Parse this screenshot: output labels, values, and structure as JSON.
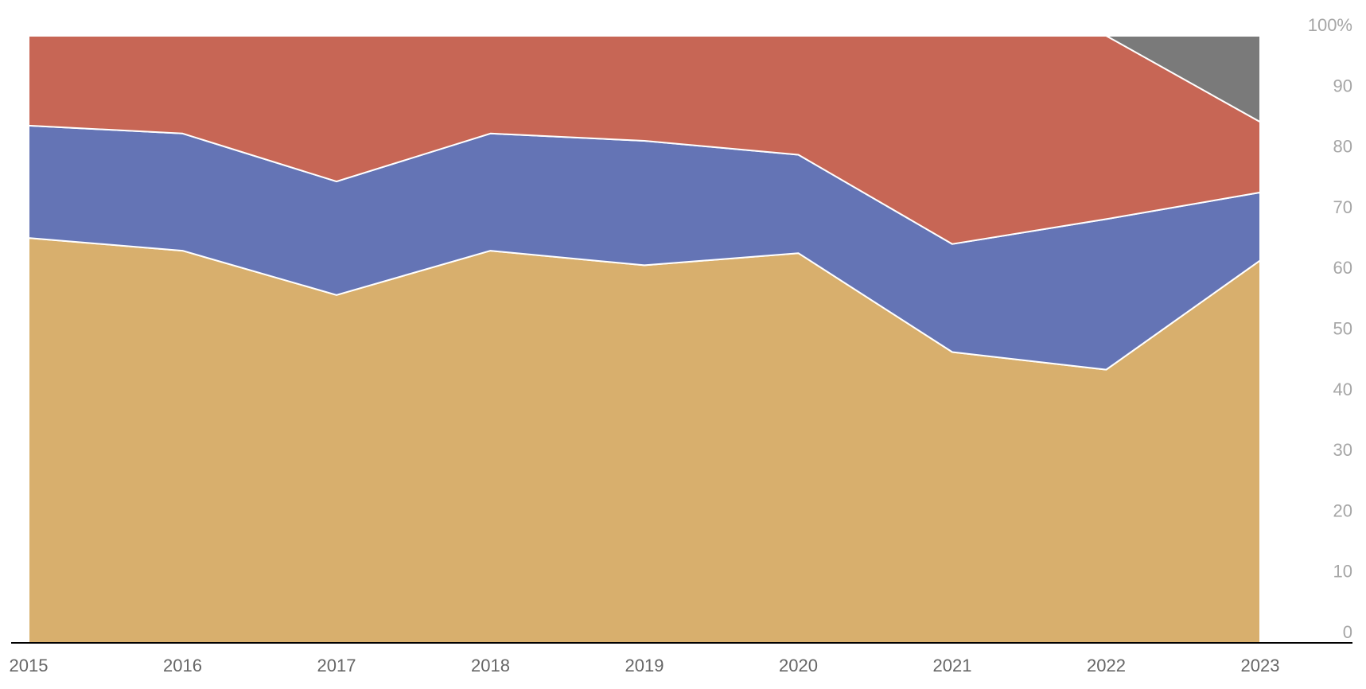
{
  "chart_data": {
    "type": "area",
    "stacked": true,
    "normalized_percent": true,
    "x": [
      "2015",
      "2016",
      "2017",
      "2018",
      "2019",
      "2020",
      "2021",
      "2022",
      "2023"
    ],
    "series": [
      {
        "color": "#d8af6d",
        "values": [
          66.7,
          64.6,
          57.3,
          64.6,
          62.2,
          64.2,
          47.9,
          45.0,
          63.0
        ]
      },
      {
        "color": "#6474b5",
        "values": [
          18.5,
          19.3,
          18.7,
          19.3,
          20.5,
          16.2,
          17.8,
          24.8,
          11.2
        ]
      },
      {
        "color": "#c76655",
        "values": [
          14.8,
          16.1,
          24.0,
          16.1,
          17.3,
          19.6,
          34.3,
          30.2,
          11.6
        ]
      },
      {
        "color": "#7a7a7a",
        "values": [
          0,
          0,
          0,
          0,
          0,
          0,
          0,
          0,
          14.2
        ]
      }
    ],
    "yaxis": {
      "position": "right",
      "ylim": [
        0,
        100
      ],
      "ticks": [
        0,
        10,
        20,
        30,
        40,
        50,
        60,
        70,
        80,
        90,
        100
      ],
      "tick_labels": [
        "0",
        "10",
        "20",
        "30",
        "40",
        "50",
        "60",
        "70",
        "80",
        "90",
        "100%"
      ]
    },
    "grid": false,
    "legend": "none"
  }
}
